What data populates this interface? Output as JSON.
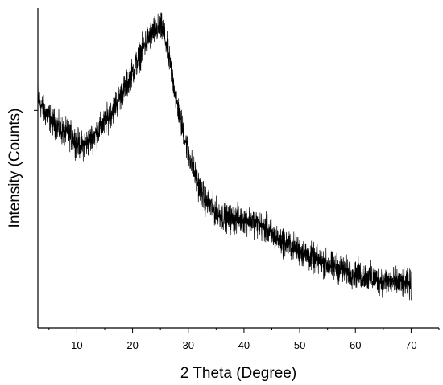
{
  "chart_data": {
    "type": "line",
    "title": "",
    "xlabel": "2 Theta (Degree)",
    "ylabel": "Intensity (Counts)",
    "xlim": [
      3,
      75
    ],
    "ylim": [
      0,
      100
    ],
    "x_ticks_major": [
      10,
      20,
      30,
      40,
      50,
      60,
      70
    ],
    "x_ticks_minor": [
      5,
      15,
      25,
      35,
      45,
      55,
      65,
      75
    ],
    "y_ticks": [
      68
    ],
    "y_tick_labels_shown": false,
    "grid": false,
    "legend": "none",
    "line_color": "#000000",
    "noise_amplitude": 2.2,
    "series": [
      {
        "x": [
          3,
          4,
          5,
          6,
          7,
          8,
          9,
          10,
          11,
          12,
          13,
          14,
          15,
          16,
          17,
          18,
          19,
          20,
          21,
          22,
          23,
          24,
          25,
          25.5,
          26,
          27,
          28,
          29,
          30,
          31,
          32,
          33,
          34,
          35,
          36,
          37,
          38,
          39,
          40,
          41,
          42,
          43,
          44,
          45,
          46,
          47,
          48,
          50,
          52,
          54,
          56,
          58,
          60,
          62,
          64,
          66,
          68,
          70
        ],
        "y": [
          72,
          68,
          66,
          64,
          62,
          61,
          60,
          58,
          57,
          58,
          60,
          62,
          64,
          67,
          70,
          73,
          76,
          80,
          84,
          88,
          91,
          93,
          94,
          93,
          89,
          80,
          70,
          62,
          55,
          49,
          44,
          40,
          38,
          36,
          35,
          34,
          34,
          34,
          34,
          34,
          33,
          32,
          31,
          29,
          28,
          27,
          26,
          24,
          22,
          20.5,
          19,
          18,
          17,
          16,
          15,
          14.5,
          14,
          13.5
        ]
      }
    ]
  }
}
